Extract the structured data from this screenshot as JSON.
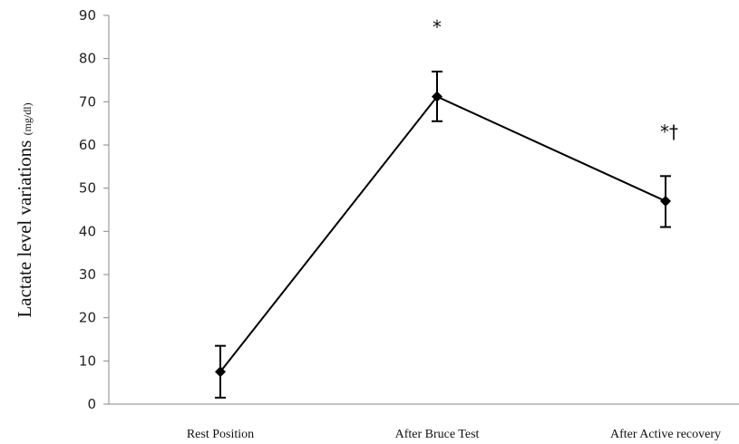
{
  "chart_data": {
    "type": "line",
    "categories": [
      "Rest Position",
      "After Bruce Test",
      "After Active recovery"
    ],
    "series": [
      {
        "values": [
          7.5,
          71.2,
          47.0
        ],
        "error_low": [
          1.5,
          65.5,
          41.0
        ],
        "error_high": [
          13.5,
          77.0,
          52.8
        ],
        "annotations": [
          "",
          "*",
          "*†"
        ]
      }
    ],
    "ylabel": "Lactate level variations",
    "ylabel_unit": "(mg/dl)",
    "ylim": [
      0,
      90
    ],
    "yticks": [
      "0",
      "10",
      "20",
      "30",
      "40",
      "50",
      "60",
      "70",
      "80",
      "90"
    ],
    "grid": false,
    "line_color": "#000000",
    "marker": "diamond"
  }
}
